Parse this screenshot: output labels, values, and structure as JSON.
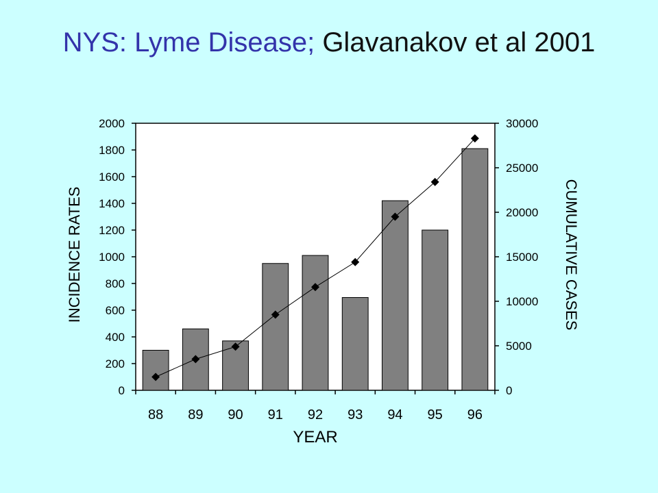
{
  "slide": {
    "title_part1": "NYS: Lyme Disease;",
    "title_part2": "Glavanakov et al 2001",
    "title_color1": "#3333aa",
    "title_color2": "#111111",
    "background": "#ccffff"
  },
  "chart_data": {
    "type": "bar",
    "categories": [
      "88",
      "89",
      "90",
      "91",
      "92",
      "93",
      "94",
      "95",
      "96"
    ],
    "xlabel": "YEAR",
    "ylabel": "INCIDENCE RATES",
    "y2label": "CUMULATIVE CASES",
    "ylim": [
      0,
      2000
    ],
    "y2lim": [
      0,
      30000
    ],
    "yticks": [
      "0",
      "200",
      "400",
      "600",
      "800",
      "1000",
      "1200",
      "1400",
      "1600",
      "1800",
      "2000"
    ],
    "y2ticks": [
      "0",
      "5000",
      "10000",
      "15000",
      "20000",
      "25000",
      "30000"
    ],
    "grid": false,
    "legend": "none",
    "series": [
      {
        "type": "bar",
        "axis": "left",
        "color": "#808080",
        "values": [
          300,
          460,
          370,
          950,
          1010,
          695,
          1420,
          1200,
          1810
        ]
      },
      {
        "type": "line",
        "axis": "right",
        "marker": "diamond",
        "color": "#000000",
        "values": [
          1500,
          3500,
          4900,
          8500,
          11600,
          14400,
          19500,
          23400,
          28300
        ]
      }
    ]
  }
}
